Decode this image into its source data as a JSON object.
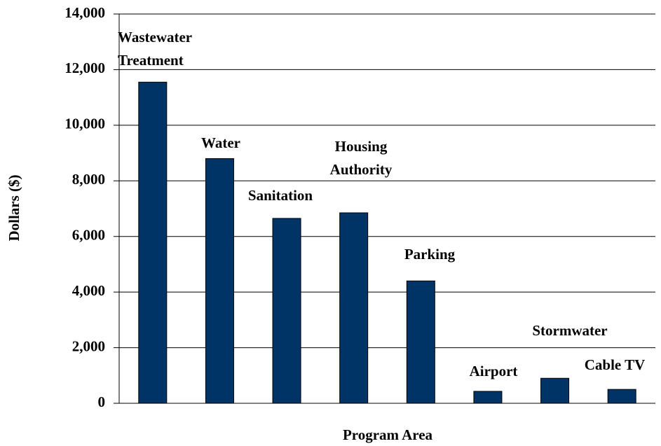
{
  "chart_data": {
    "type": "bar",
    "categories": [
      "Wastewater\nTreatment",
      "Water",
      "Sanitation",
      "Housing\nAuthority",
      "Parking",
      "Airport",
      "Stormwater",
      "Cable TV"
    ],
    "values": [
      11550,
      8800,
      6650,
      6850,
      4400,
      430,
      900,
      500
    ],
    "color": "#003366",
    "x_label": "Program Area",
    "y_label": "Dollars ($)",
    "ylim": [
      0,
      14000
    ],
    "yticks": [
      0,
      {
        "value": 2000,
        "label": "2,000"
      },
      {
        "value": 4000,
        "label": "4,000"
      },
      {
        "value": 6000,
        "label": "6,000"
      },
      {
        "value": 8000,
        "label": "8,000"
      },
      {
        "value": 10000,
        "label": "10,000"
      },
      {
        "value": 12000,
        "label": "12,000"
      },
      {
        "value": 14000,
        "label": "14,000"
      }
    ],
    "grid": true
  }
}
